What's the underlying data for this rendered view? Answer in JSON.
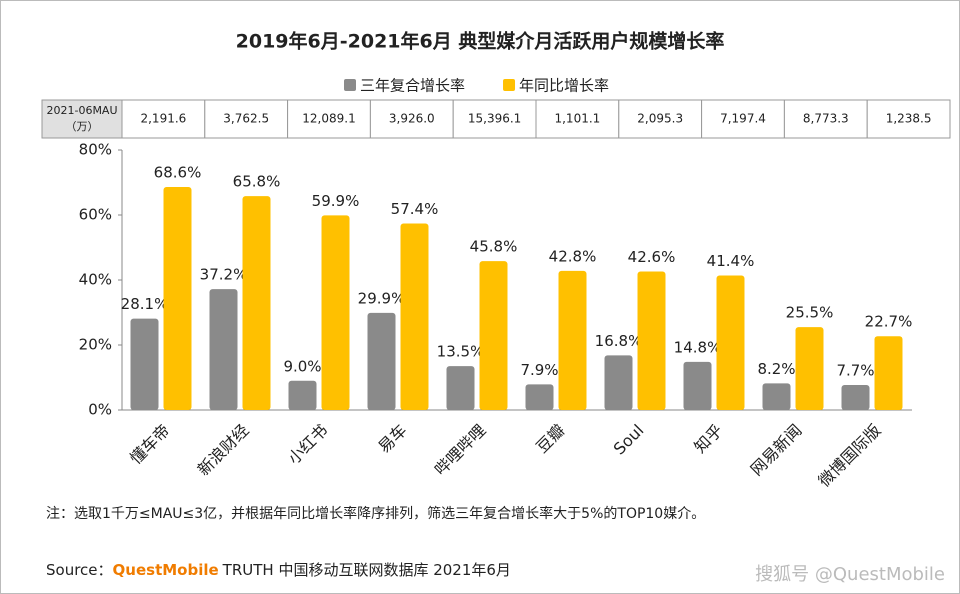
{
  "chart_data": {
    "type": "bar",
    "title": "2019年6月-2021年6月 典型媒介月活跃用户规模增长率",
    "categories": [
      "懂车帝",
      "新浪财经",
      "小红书",
      "易车",
      "哔哩哔哩",
      "豆瓣",
      "Soul",
      "知乎",
      "网易新闻",
      "微博国际版"
    ],
    "series": [
      {
        "name": "三年复合增长率",
        "color": "#8a8a8a",
        "values": [
          28.1,
          37.2,
          9.0,
          29.9,
          13.5,
          7.9,
          16.8,
          14.8,
          8.2,
          7.7
        ],
        "value_labels": [
          "28.1%",
          "37.2%",
          "9.0%",
          "29.9%",
          "13.5%",
          "7.9%",
          "16.8%",
          "14.8%",
          "8.2%",
          "7.7%"
        ]
      },
      {
        "name": "年同比增长率",
        "color": "#ffc000",
        "values": [
          68.6,
          65.8,
          59.9,
          57.4,
          45.8,
          42.8,
          42.6,
          41.4,
          25.5,
          22.7
        ],
        "value_labels": [
          "68.6%",
          "65.8%",
          "59.9%",
          "57.4%",
          "45.8%",
          "42.8%",
          "42.6%",
          "41.4%",
          "25.5%",
          "22.7%"
        ]
      }
    ],
    "ylim": [
      0,
      80
    ],
    "yticks": [
      {
        "value": 0,
        "label": "0%"
      },
      {
        "value": 20,
        "label": "20%"
      },
      {
        "value": 40,
        "label": "40%"
      },
      {
        "value": 60,
        "label": "60%"
      },
      {
        "value": 80,
        "label": "80%"
      }
    ],
    "grid": false,
    "legend_position": "top"
  },
  "mau_table": {
    "header": [
      "2021-06MAU",
      "（万）"
    ],
    "cells": [
      "2,191.6",
      "3,762.5",
      "12,089.1",
      "3,926.0",
      "15,396.1",
      "1,101.1",
      "2,095.3",
      "7,197.4",
      "8,773.3",
      "1,238.5"
    ]
  },
  "note": "注：选取1千万≤MAU≤3亿，并根据年同比增长率降序排列，筛选三年复合增长率大于5%的TOP10媒介。",
  "source": {
    "prefix": "Source：",
    "brand": "QuestMobile",
    "rest": "TRUTH 中国移动互联网数据库 2021年6月"
  },
  "watermark": "搜狐号 @QuestMobile"
}
